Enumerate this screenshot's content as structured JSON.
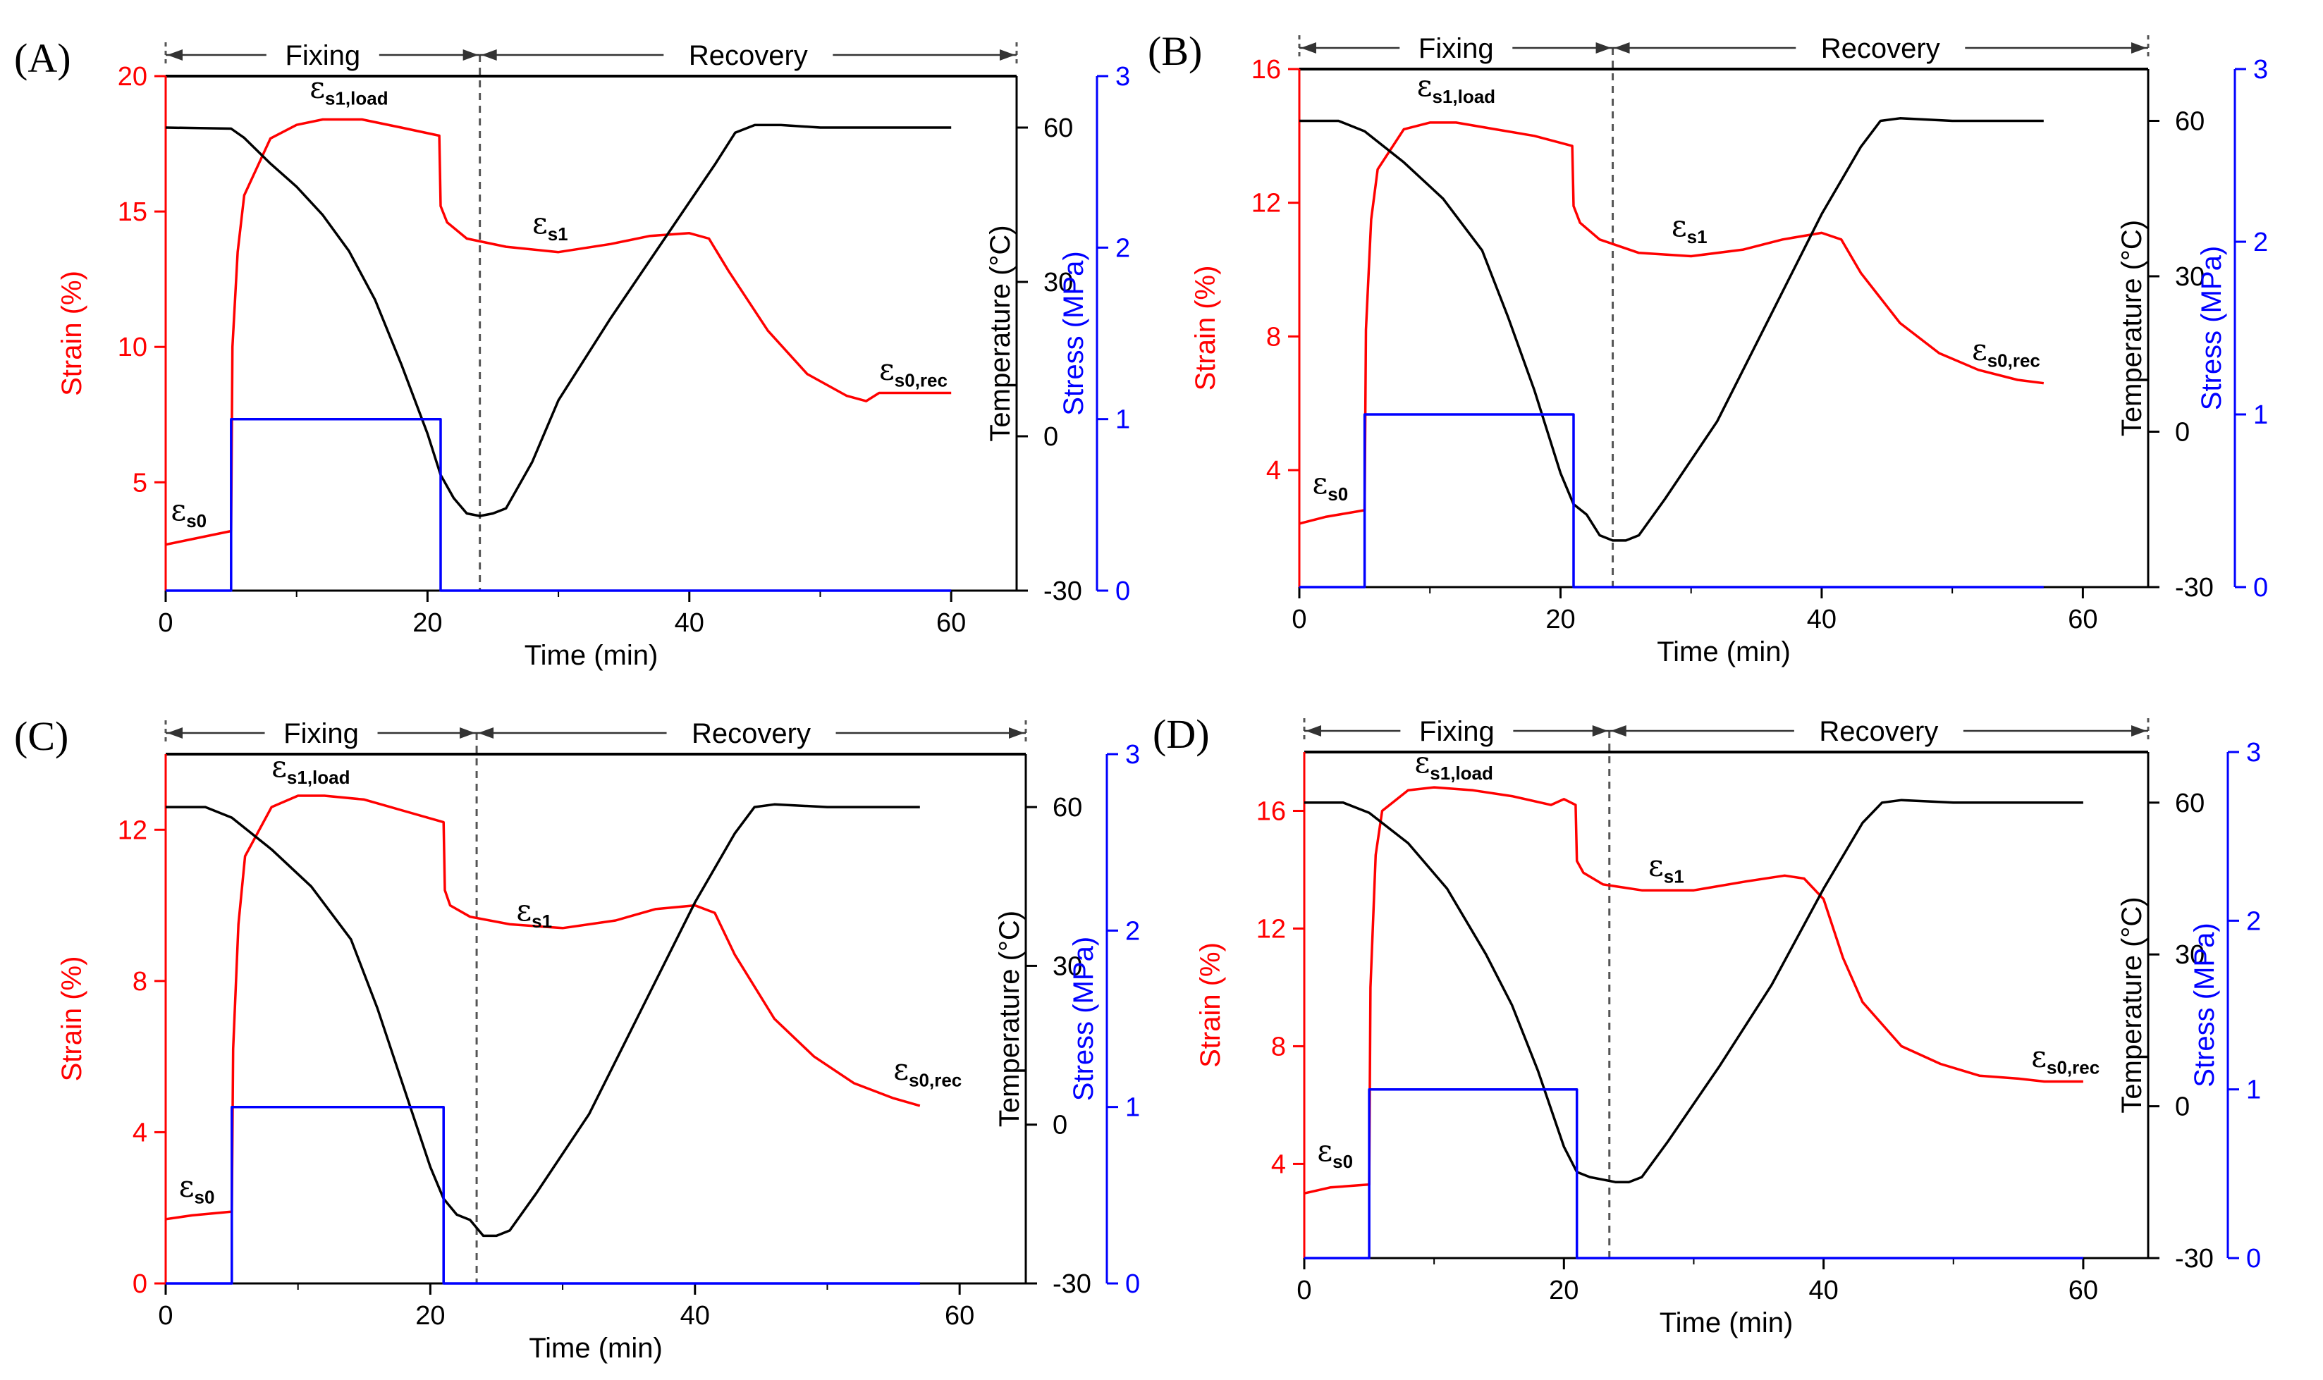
{
  "colors": {
    "strain": "#ff0000",
    "temperature": "#000000",
    "stress": "#0000ff",
    "phase_line": "#555555"
  },
  "phases": {
    "fixing": "Fixing",
    "recovery": "Recovery"
  },
  "chart_data": [
    {
      "type": "line",
      "panel_label": "(A)",
      "xlabel": "Time (min)",
      "ylabels": {
        "strain": "Strain (%)",
        "temperature": "Temperature (°C)",
        "stress": "Stress (MPa)"
      },
      "xlim": [
        0,
        65
      ],
      "xticks": [
        0,
        20,
        40,
        60
      ],
      "strain_lim": [
        1,
        20
      ],
      "strain_ticks": [
        5,
        10,
        15,
        20
      ],
      "temp_lim": [
        -30,
        70
      ],
      "temp_ticks": [
        -30,
        0,
        30,
        60
      ],
      "stress_lim": [
        0,
        3
      ],
      "stress_ticks": [
        0,
        1,
        2,
        3
      ],
      "fixing_end": 24,
      "recovery_end": 65,
      "annotations": [
        {
          "sym": "ε",
          "sub": "s0",
          "x": 0.4,
          "y": 3.6
        },
        {
          "sym": "ε",
          "sub": "s1,load",
          "x": 11,
          "y": 19.2
        },
        {
          "sym": "ε",
          "sub": "s1",
          "x": 28,
          "y": 14.2
        },
        {
          "sym": "ε",
          "sub": "s0,rec",
          "x": 54.5,
          "y": 8.8
        }
      ],
      "series": [
        {
          "name": "Strain",
          "axis": "strain",
          "x": [
            0,
            2,
            5,
            5.1,
            5.5,
            6,
            8,
            10,
            12,
            15,
            18,
            20.9,
            21,
            21.5,
            23,
            26,
            30,
            34,
            37,
            40,
            41.5,
            43,
            46,
            49,
            52,
            53.5,
            54.5,
            60
          ],
          "y": [
            2.7,
            2.9,
            3.2,
            10.0,
            13.5,
            15.6,
            17.7,
            18.2,
            18.4,
            18.4,
            18.1,
            17.8,
            15.2,
            14.6,
            14.0,
            13.7,
            13.5,
            13.8,
            14.1,
            14.2,
            14.0,
            12.8,
            10.6,
            9.0,
            8.2,
            8.0,
            8.3,
            8.3
          ]
        },
        {
          "name": "Temperature",
          "axis": "temperature",
          "x": [
            0,
            5,
            6,
            8,
            10,
            12,
            14,
            16,
            18,
            20,
            21,
            22,
            23,
            24,
            25,
            26,
            28,
            30,
            34,
            38,
            42,
            43.5,
            45,
            47,
            50,
            60
          ],
          "y": [
            60,
            59.8,
            58,
            53,
            48.5,
            43,
            36,
            26.5,
            14,
            0.5,
            -7.5,
            -12,
            -15,
            -15.5,
            -15,
            -14,
            -5,
            7,
            23,
            38,
            53,
            59,
            60.5,
            60.5,
            60,
            60
          ]
        },
        {
          "name": "Stress",
          "axis": "stress",
          "x": [
            0,
            5,
            5,
            21,
            21,
            60
          ],
          "y": [
            0,
            0,
            1,
            1,
            0,
            0
          ]
        }
      ]
    },
    {
      "type": "line",
      "panel_label": "(B)",
      "xlabel": "Time (min)",
      "ylabels": {
        "strain": "Strain (%)",
        "temperature": "Temperature (°C)",
        "stress": "Stress (MPa)"
      },
      "xlim": [
        0,
        65
      ],
      "xticks": [
        0,
        20,
        40,
        60
      ],
      "strain_lim": [
        0.5,
        16
      ],
      "strain_ticks": [
        4,
        8,
        12,
        16
      ],
      "temp_lim": [
        -30,
        70
      ],
      "temp_ticks": [
        -30,
        0,
        30,
        60
      ],
      "stress_lim": [
        0,
        3
      ],
      "stress_ticks": [
        0,
        1,
        2,
        3
      ],
      "fixing_end": 24,
      "recovery_end": 65,
      "annotations": [
        {
          "sym": "ε",
          "sub": "s0",
          "x": 1,
          "y": 3.3
        },
        {
          "sym": "ε",
          "sub": "s1,load",
          "x": 9,
          "y": 15.2
        },
        {
          "sym": "ε",
          "sub": "s1",
          "x": 28.5,
          "y": 11.0
        },
        {
          "sym": "ε",
          "sub": "s0,rec",
          "x": 51.5,
          "y": 7.3
        }
      ],
      "series": [
        {
          "name": "Strain",
          "axis": "strain",
          "x": [
            0,
            2,
            5,
            5.1,
            5.5,
            6,
            8,
            10,
            12,
            15,
            18,
            20.9,
            21,
            21.5,
            23,
            26,
            30,
            34,
            37,
            40,
            41.5,
            43,
            46,
            49,
            52,
            55,
            57
          ],
          "y": [
            2.4,
            2.6,
            2.8,
            8.2,
            11.5,
            13.0,
            14.2,
            14.4,
            14.4,
            14.2,
            14.0,
            13.7,
            11.9,
            11.4,
            10.9,
            10.5,
            10.4,
            10.6,
            10.9,
            11.1,
            10.9,
            9.9,
            8.4,
            7.5,
            7.0,
            6.7,
            6.6
          ]
        },
        {
          "name": "Temperature",
          "axis": "temperature",
          "x": [
            0,
            3,
            5,
            8,
            11,
            14,
            16,
            18,
            20,
            21,
            22,
            23,
            24,
            25,
            26,
            28,
            32,
            36,
            40,
            43,
            44.5,
            46,
            50,
            57
          ],
          "y": [
            60,
            60,
            58,
            52,
            45,
            35,
            22,
            8,
            -8,
            -14,
            -16,
            -20,
            -21,
            -21,
            -20,
            -13,
            2,
            22,
            42,
            55,
            60,
            60.5,
            60,
            60
          ]
        },
        {
          "name": "Stress",
          "axis": "stress",
          "x": [
            0,
            5,
            5,
            21,
            21,
            57
          ],
          "y": [
            0,
            0,
            1,
            1,
            0,
            0
          ]
        }
      ]
    },
    {
      "type": "line",
      "panel_label": "(C)",
      "xlabel": "Time (min)",
      "ylabels": {
        "strain": "Strain (%)",
        "temperature": "Temperature (°C)",
        "stress": "Stress (MPa)"
      },
      "xlim": [
        0,
        65
      ],
      "xticks": [
        0,
        20,
        40,
        60
      ],
      "strain_lim": [
        0,
        14
      ],
      "strain_ticks": [
        0,
        4,
        8,
        12
      ],
      "temp_lim": [
        -30,
        70
      ],
      "temp_ticks": [
        -30,
        0,
        30,
        60
      ],
      "stress_lim": [
        0,
        3
      ],
      "stress_ticks": [
        0,
        1,
        2,
        3
      ],
      "fixing_end": 23.5,
      "recovery_end": 65,
      "annotations": [
        {
          "sym": "ε",
          "sub": "s0",
          "x": 1,
          "y": 2.3
        },
        {
          "sym": "ε",
          "sub": "s1,load",
          "x": 8,
          "y": 13.4
        },
        {
          "sym": "ε",
          "sub": "s1",
          "x": 26.5,
          "y": 9.6
        },
        {
          "sym": "ε",
          "sub": "s0,rec",
          "x": 55,
          "y": 5.4
        }
      ],
      "series": [
        {
          "name": "Strain",
          "axis": "strain",
          "x": [
            0,
            2,
            5,
            5.1,
            5.5,
            6,
            8,
            10,
            12,
            15,
            18,
            21,
            21.1,
            21.5,
            23,
            26,
            30,
            34,
            37,
            40,
            41.5,
            43,
            46,
            49,
            52,
            55,
            57
          ],
          "y": [
            1.7,
            1.8,
            1.9,
            6.2,
            9.5,
            11.3,
            12.6,
            12.9,
            12.9,
            12.8,
            12.5,
            12.2,
            10.4,
            10.0,
            9.7,
            9.5,
            9.4,
            9.6,
            9.9,
            10.0,
            9.8,
            8.7,
            7.0,
            6.0,
            5.3,
            4.9,
            4.7
          ]
        },
        {
          "name": "Temperature",
          "axis": "temperature",
          "x": [
            0,
            3,
            5,
            8,
            11,
            14,
            16,
            18,
            20,
            21,
            22,
            23,
            24,
            25,
            26,
            28,
            32,
            36,
            40,
            43,
            44.5,
            46,
            50,
            57
          ],
          "y": [
            60,
            60,
            58,
            52,
            45,
            35,
            22,
            7,
            -8,
            -14,
            -17,
            -18,
            -21,
            -21,
            -20,
            -13,
            2,
            22,
            42,
            55,
            60,
            60.5,
            60,
            60
          ]
        },
        {
          "name": "Stress",
          "axis": "stress",
          "x": [
            0,
            5,
            5,
            21,
            21,
            57
          ],
          "y": [
            0,
            0,
            1,
            1,
            0,
            0
          ]
        }
      ]
    },
    {
      "type": "line",
      "panel_label": "(D)",
      "xlabel": "Time (min)",
      "ylabels": {
        "strain": "Strain (%)",
        "temperature": "Temperature (°C)",
        "stress": "Stress (MPa)"
      },
      "xlim": [
        0,
        65
      ],
      "xticks": [
        0,
        20,
        40,
        60
      ],
      "strain_lim": [
        0.8,
        18
      ],
      "strain_ticks": [
        4,
        8,
        12,
        16
      ],
      "temp_lim": [
        -30,
        70
      ],
      "temp_ticks": [
        -30,
        0,
        30,
        60
      ],
      "stress_lim": [
        0,
        3
      ],
      "stress_ticks": [
        0,
        1,
        2,
        3
      ],
      "fixing_end": 23.5,
      "recovery_end": 65,
      "annotations": [
        {
          "sym": "ε",
          "sub": "s0",
          "x": 1,
          "y": 4.1
        },
        {
          "sym": "ε",
          "sub": "s1,load",
          "x": 8.5,
          "y": 17.3
        },
        {
          "sym": "ε",
          "sub": "s1",
          "x": 26.5,
          "y": 13.8
        },
        {
          "sym": "ε",
          "sub": "s0,rec",
          "x": 56,
          "y": 7.3
        }
      ],
      "series": [
        {
          "name": "Strain",
          "axis": "strain",
          "x": [
            0,
            2,
            5,
            5.1,
            5.5,
            6,
            8,
            10,
            13,
            16,
            19,
            20,
            20.9,
            21,
            21.5,
            23,
            26,
            30,
            34,
            37,
            38.5,
            40,
            41.5,
            43,
            46,
            49,
            52,
            55,
            57,
            60
          ],
          "y": [
            3.0,
            3.2,
            3.3,
            10.0,
            14.5,
            16.0,
            16.7,
            16.8,
            16.7,
            16.5,
            16.2,
            16.4,
            16.2,
            14.3,
            13.9,
            13.5,
            13.3,
            13.3,
            13.6,
            13.8,
            13.7,
            13.0,
            11.0,
            9.5,
            8.0,
            7.4,
            7.0,
            6.9,
            6.8,
            6.8
          ]
        },
        {
          "name": "Temperature",
          "axis": "temperature",
          "x": [
            0,
            3,
            5,
            8,
            11,
            14,
            16,
            18,
            20,
            21,
            22,
            23,
            24,
            25,
            26,
            28,
            32,
            36,
            40,
            43,
            44.5,
            46,
            50,
            60
          ],
          "y": [
            60,
            60,
            58,
            52,
            43,
            30,
            20,
            7,
            -8,
            -13,
            -14,
            -14.5,
            -15,
            -15,
            -14,
            -7,
            8,
            24,
            43,
            56,
            60,
            60.5,
            60,
            60
          ]
        },
        {
          "name": "Stress",
          "axis": "stress",
          "x": [
            0,
            5,
            5,
            21,
            21,
            60
          ],
          "y": [
            0,
            0,
            1,
            1,
            0,
            0
          ]
        }
      ]
    }
  ]
}
